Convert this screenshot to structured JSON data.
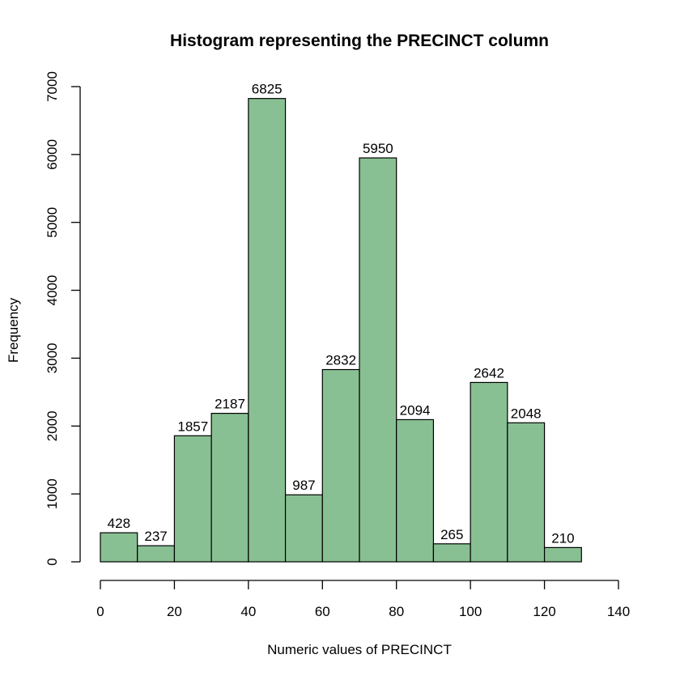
{
  "chart_data": {
    "type": "bar",
    "title": "Histogram representing the PRECINCT column",
    "xlabel": "Numeric values of PRECINCT",
    "ylabel": "Frequency",
    "bin_edges": [
      0,
      10,
      20,
      30,
      40,
      50,
      60,
      70,
      80,
      90,
      100,
      110,
      120,
      130
    ],
    "values": [
      428,
      237,
      1857,
      2187,
      6825,
      987,
      2832,
      5950,
      2094,
      265,
      2642,
      2048,
      210
    ],
    "xlim": [
      0,
      140
    ],
    "ylim": [
      0,
      7000
    ],
    "x_ticks": [
      0,
      20,
      40,
      60,
      80,
      100,
      120,
      140
    ],
    "y_ticks": [
      0,
      1000,
      2000,
      3000,
      4000,
      5000,
      6000,
      7000
    ],
    "bar_color": "#88c093",
    "grid": false,
    "legend": "none"
  }
}
